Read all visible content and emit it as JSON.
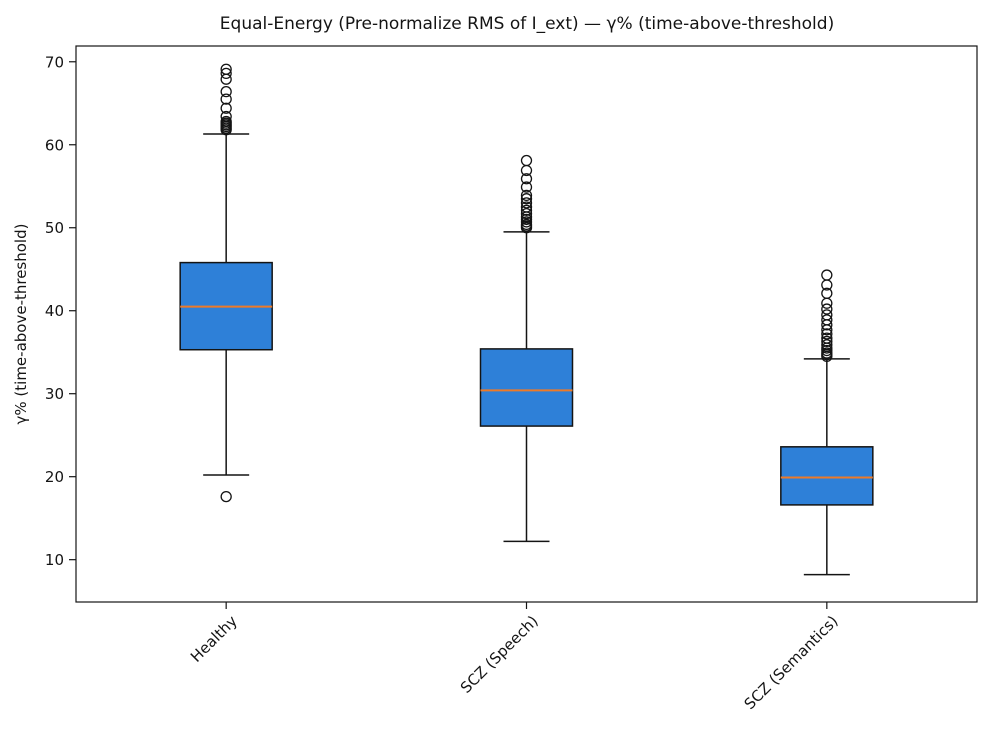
{
  "figure": {
    "background": "#ffffff"
  },
  "chart_data": {
    "type": "boxplot",
    "title": "Equal-Energy (Pre-normalize RMS of I_ext) — γ% (time-above-threshold)",
    "ylabel": "γ% (time-above-threshold)",
    "xlabel": "",
    "categories": [
      "Healthy",
      "SCZ (Speech)",
      "SCZ (Semantics)"
    ],
    "ylim": [
      4.9,
      71.9
    ],
    "yticks": [
      10,
      20,
      30,
      40,
      50,
      60,
      70
    ],
    "x_tick_rotation": 45,
    "grid": false,
    "legend": null,
    "boxes": [
      {
        "category": "Healthy",
        "q1": 35.3,
        "median": 40.5,
        "q3": 45.8,
        "whisker_low": 20.2,
        "whisker_high": 61.3,
        "outliers_low": [
          17.6
        ],
        "outliers_high": [
          61.8,
          62.0,
          62.2,
          62.4,
          62.6,
          62.8,
          63.4,
          64.4,
          65.5,
          66.4,
          67.9,
          68.6,
          69.1
        ]
      },
      {
        "category": "SCZ (Speech)",
        "q1": 26.1,
        "median": 30.4,
        "q3": 35.4,
        "whisker_low": 12.2,
        "whisker_high": 49.5,
        "outliers_low": [],
        "outliers_high": [
          50.0,
          50.2,
          50.4,
          50.7,
          51.0,
          51.3,
          51.7,
          52.1,
          52.5,
          53.0,
          53.5,
          53.9,
          54.9,
          55.9,
          56.9,
          58.1
        ]
      },
      {
        "category": "SCZ (Semantics)",
        "q1": 16.6,
        "median": 19.9,
        "q3": 23.6,
        "whisker_low": 8.2,
        "whisker_high": 34.2,
        "outliers_low": [],
        "outliers_high": [
          34.5,
          34.7,
          34.9,
          35.2,
          35.5,
          35.9,
          36.3,
          36.7,
          37.2,
          37.7,
          38.3,
          38.9,
          39.5,
          40.2,
          40.9,
          42.1,
          43.1,
          44.3
        ]
      }
    ],
    "style": {
      "box_fill": "#2e80d8",
      "median_color": "#ee7a28",
      "line_color": "#141414",
      "text_color": "#141414",
      "flier_radius": 5
    }
  }
}
